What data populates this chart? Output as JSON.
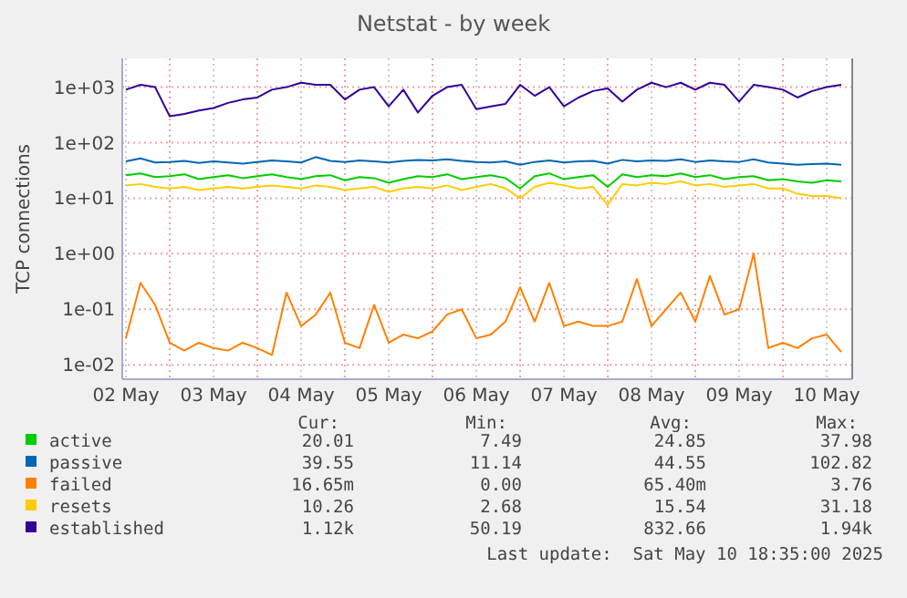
{
  "chart_data": {
    "type": "line",
    "title": "Netstat - by week",
    "ylabel": "TCP connections",
    "log": "y",
    "grid": true,
    "legend": "bottom left",
    "marker": "none",
    "line_style": "solid",
    "xlim": [
      "2025-05-02T11:00",
      "2025-05-10T19:00"
    ],
    "xticks": [
      {
        "value": "2025-05-02T12:00",
        "label": "02 May"
      },
      {
        "value": "2025-05-03T00:00",
        "label": null
      },
      {
        "value": "2025-05-03T12:00",
        "label": "03 May"
      },
      {
        "value": "2025-05-04T00:00",
        "label": null
      },
      {
        "value": "2025-05-04T12:00",
        "label": "04 May"
      },
      {
        "value": "2025-05-05T00:00",
        "label": null
      },
      {
        "value": "2025-05-05T12:00",
        "label": "05 May"
      },
      {
        "value": "2025-05-06T00:00",
        "label": null
      },
      {
        "value": "2025-05-06T12:00",
        "label": "06 May"
      },
      {
        "value": "2025-05-07T00:00",
        "label": null
      },
      {
        "value": "2025-05-07T12:00",
        "label": "07 May"
      },
      {
        "value": "2025-05-08T00:00",
        "label": null
      },
      {
        "value": "2025-05-08T12:00",
        "label": "08 May"
      },
      {
        "value": "2025-05-09T00:00",
        "label": null
      },
      {
        "value": "2025-05-09T12:00",
        "label": "09 May"
      },
      {
        "value": "2025-05-10T00:00",
        "label": null
      },
      {
        "value": "2025-05-10T12:00",
        "label": "10 May"
      }
    ],
    "ylim": [
      0.0055,
      3300
    ],
    "yticks": [
      {
        "value": 0.01,
        "label": "1e-02"
      },
      {
        "value": 0.1,
        "label": "1e-01"
      },
      {
        "value": 1,
        "label": "1e+00"
      },
      {
        "value": 10,
        "label": "1e+01"
      },
      {
        "value": 100,
        "label": "1e+02"
      },
      {
        "value": 1000,
        "label": "1e+03"
      }
    ],
    "x": [
      "2025-05-02T12:00",
      "2025-05-02T16:00",
      "2025-05-02T20:00",
      "2025-05-03T00:00",
      "2025-05-03T04:00",
      "2025-05-03T08:00",
      "2025-05-03T12:00",
      "2025-05-03T16:00",
      "2025-05-03T20:00",
      "2025-05-04T00:00",
      "2025-05-04T04:00",
      "2025-05-04T08:00",
      "2025-05-04T12:00",
      "2025-05-04T16:00",
      "2025-05-04T20:00",
      "2025-05-05T00:00",
      "2025-05-05T04:00",
      "2025-05-05T08:00",
      "2025-05-05T12:00",
      "2025-05-05T16:00",
      "2025-05-05T20:00",
      "2025-05-06T00:00",
      "2025-05-06T04:00",
      "2025-05-06T08:00",
      "2025-05-06T12:00",
      "2025-05-06T16:00",
      "2025-05-06T20:00",
      "2025-05-07T00:00",
      "2025-05-07T04:00",
      "2025-05-07T08:00",
      "2025-05-07T12:00",
      "2025-05-07T16:00",
      "2025-05-07T20:00",
      "2025-05-08T00:00",
      "2025-05-08T04:00",
      "2025-05-08T08:00",
      "2025-05-08T12:00",
      "2025-05-08T16:00",
      "2025-05-08T20:00",
      "2025-05-09T00:00",
      "2025-05-09T04:00",
      "2025-05-09T08:00",
      "2025-05-09T12:00",
      "2025-05-09T16:00",
      "2025-05-09T20:00",
      "2025-05-10T00:00",
      "2025-05-10T04:00",
      "2025-05-10T08:00",
      "2025-05-10T12:00",
      "2025-05-10T16:00"
    ],
    "series": [
      {
        "name": "active",
        "color": "#00cc00",
        "values": [
          26,
          28,
          24,
          25,
          27,
          22,
          24,
          26,
          23,
          25,
          27,
          24,
          22,
          25,
          26,
          21,
          24,
          23,
          19,
          22,
          25,
          24,
          27,
          22,
          24,
          26,
          23,
          15,
          25,
          28,
          22,
          24,
          26,
          16,
          27,
          24,
          26,
          25,
          28,
          24,
          26,
          22,
          24,
          25,
          21,
          22,
          20,
          19,
          21,
          20
        ]
      },
      {
        "name": "passive",
        "color": "#0066b3",
        "values": [
          46,
          52,
          44,
          45,
          47,
          43,
          46,
          44,
          42,
          45,
          48,
          46,
          44,
          55,
          47,
          45,
          48,
          46,
          44,
          47,
          49,
          48,
          50,
          47,
          45,
          44,
          46,
          40,
          45,
          48,
          44,
          46,
          47,
          42,
          49,
          46,
          48,
          47,
          50,
          45,
          48,
          46,
          45,
          50,
          44,
          42,
          40,
          41,
          42,
          40
        ]
      },
      {
        "name": "failed",
        "color": "#ff8000",
        "values": [
          0.03,
          0.3,
          0.12,
          0.025,
          0.018,
          0.025,
          0.02,
          0.018,
          0.025,
          0.02,
          0.015,
          0.2,
          0.05,
          0.08,
          0.2,
          0.025,
          0.02,
          0.12,
          0.025,
          0.035,
          0.03,
          0.04,
          0.08,
          0.1,
          0.03,
          0.035,
          0.06,
          0.25,
          0.06,
          0.3,
          0.05,
          0.06,
          0.05,
          0.05,
          0.06,
          0.35,
          0.05,
          0.1,
          0.2,
          0.06,
          0.4,
          0.08,
          0.1,
          1.0,
          0.02,
          0.025,
          0.02,
          0.03,
          0.035,
          0.017
        ]
      },
      {
        "name": "resets",
        "color": "#ffcc00",
        "values": [
          17,
          18,
          16,
          15,
          16,
          14,
          15,
          16,
          15,
          16,
          17,
          16,
          15,
          17,
          16,
          14,
          15,
          16,
          13,
          15,
          16,
          15,
          17,
          14,
          16,
          18,
          15,
          10,
          16,
          19,
          17,
          15,
          16,
          7.5,
          18,
          17,
          19,
          18,
          20,
          17,
          18,
          16,
          17,
          18,
          15,
          15,
          12,
          11,
          11,
          10
        ]
      },
      {
        "name": "established",
        "color": "#330099",
        "values": [
          900,
          1100,
          1000,
          300,
          330,
          380,
          420,
          520,
          600,
          650,
          900,
          1000,
          1200,
          1100,
          1100,
          600,
          900,
          1000,
          450,
          900,
          350,
          700,
          1000,
          1100,
          400,
          450,
          500,
          1100,
          700,
          1000,
          450,
          650,
          850,
          950,
          550,
          900,
          1200,
          1000,
          1200,
          900,
          1200,
          1100,
          550,
          1100,
          1000,
          900,
          650,
          850,
          1000,
          1100
        ]
      }
    ],
    "annotations": [
      "Cur:",
      "Min:",
      "Avg:",
      "Max:",
      "20.01",
      "7.49",
      "24.85",
      "37.98",
      "39.55",
      "11.14",
      "44.55",
      "102.82",
      "16.65m",
      "0.00",
      "65.40m",
      "3.76",
      "10.26",
      "2.68",
      "15.54",
      "31.18",
      "1.12k",
      "50.19",
      "832.66",
      "1.94k",
      "Last update:  Sat May 10 18:35:00 2025"
    ]
  }
}
